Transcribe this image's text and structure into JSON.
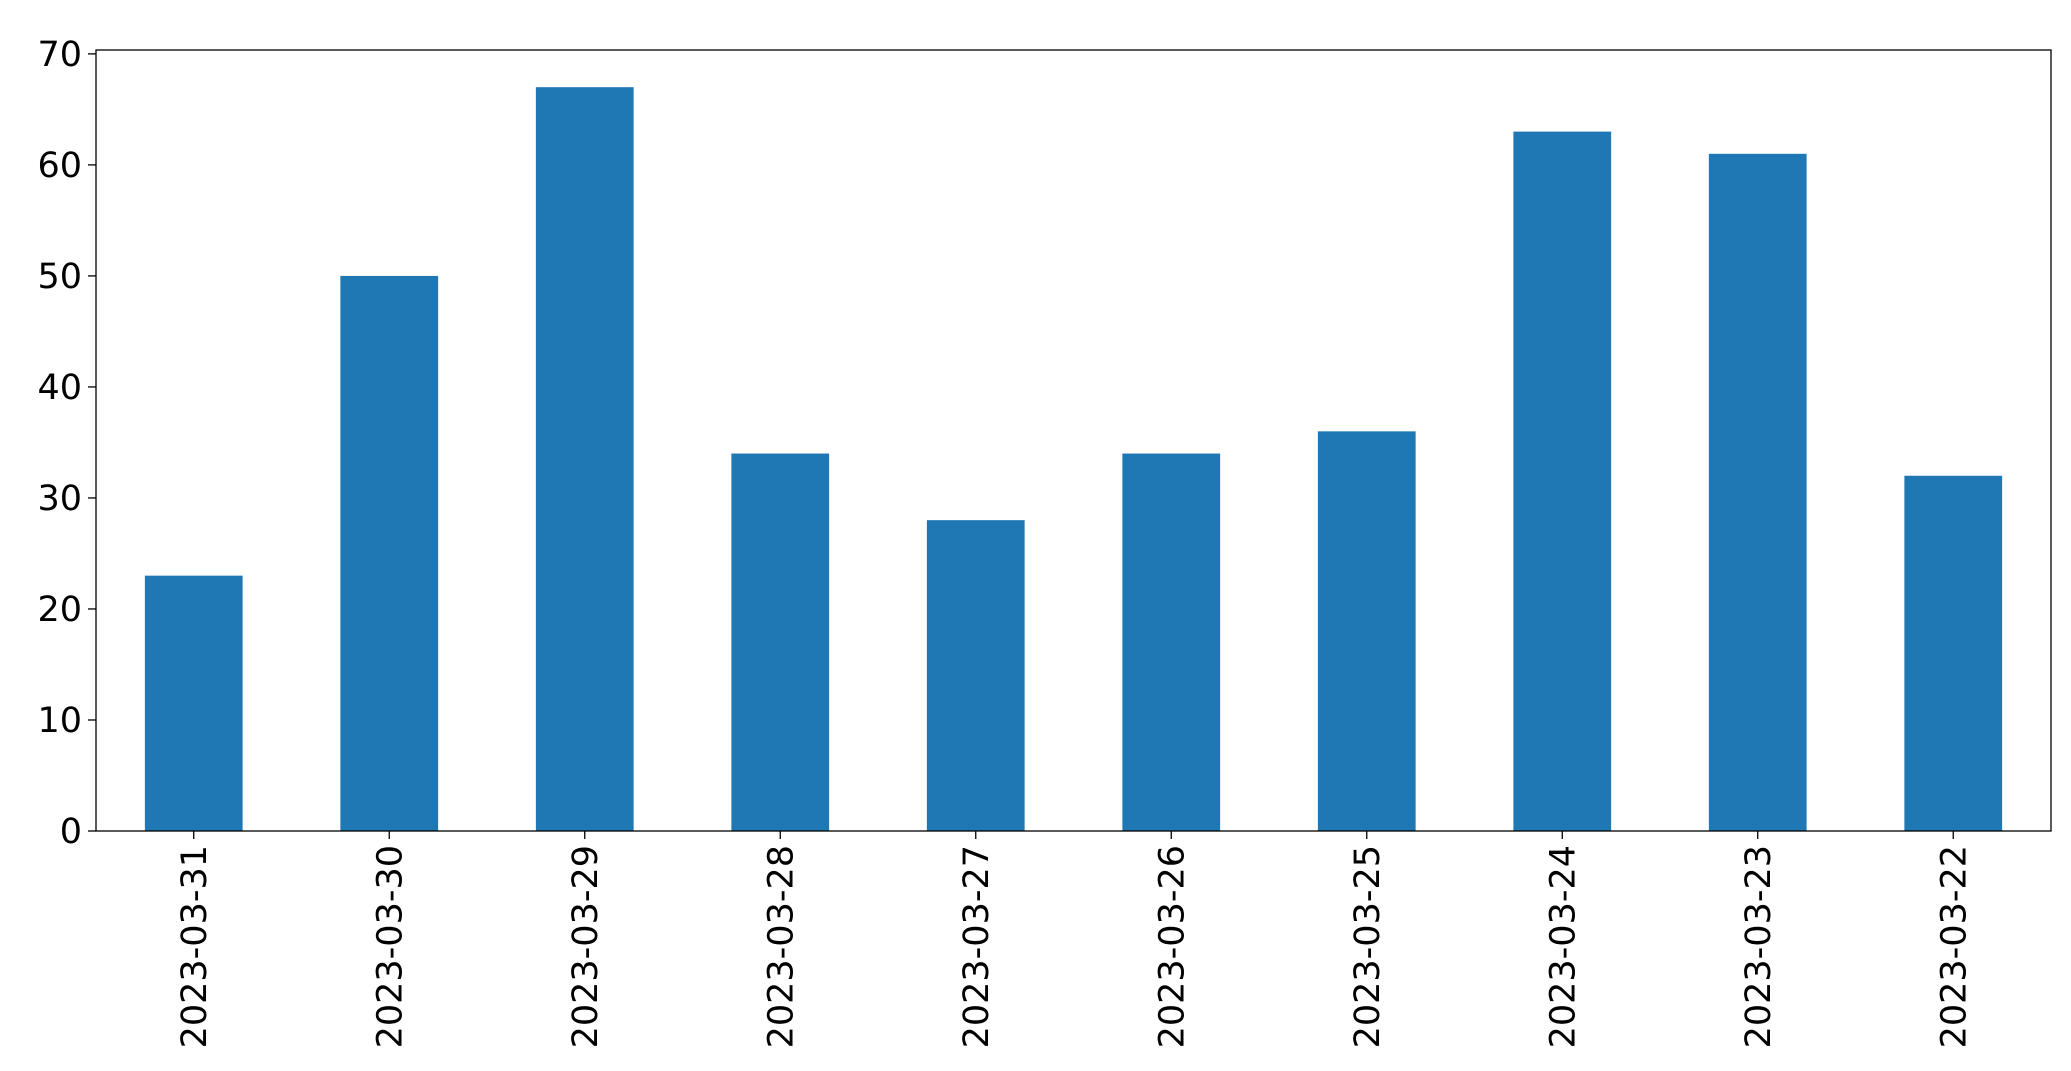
{
  "chart_data": {
    "type": "bar",
    "categories": [
      "2023-03-31",
      "2023-03-30",
      "2023-03-29",
      "2023-03-28",
      "2023-03-27",
      "2023-03-26",
      "2023-03-25",
      "2023-03-24",
      "2023-03-23",
      "2023-03-22"
    ],
    "values": [
      23,
      50,
      67,
      34,
      28,
      34,
      36,
      63,
      61,
      32
    ],
    "color": "#1f77b4",
    "ylim": [
      0,
      70.35
    ],
    "yticks": [
      0,
      10,
      20,
      30,
      40,
      50,
      60,
      70
    ],
    "grid": false
  }
}
